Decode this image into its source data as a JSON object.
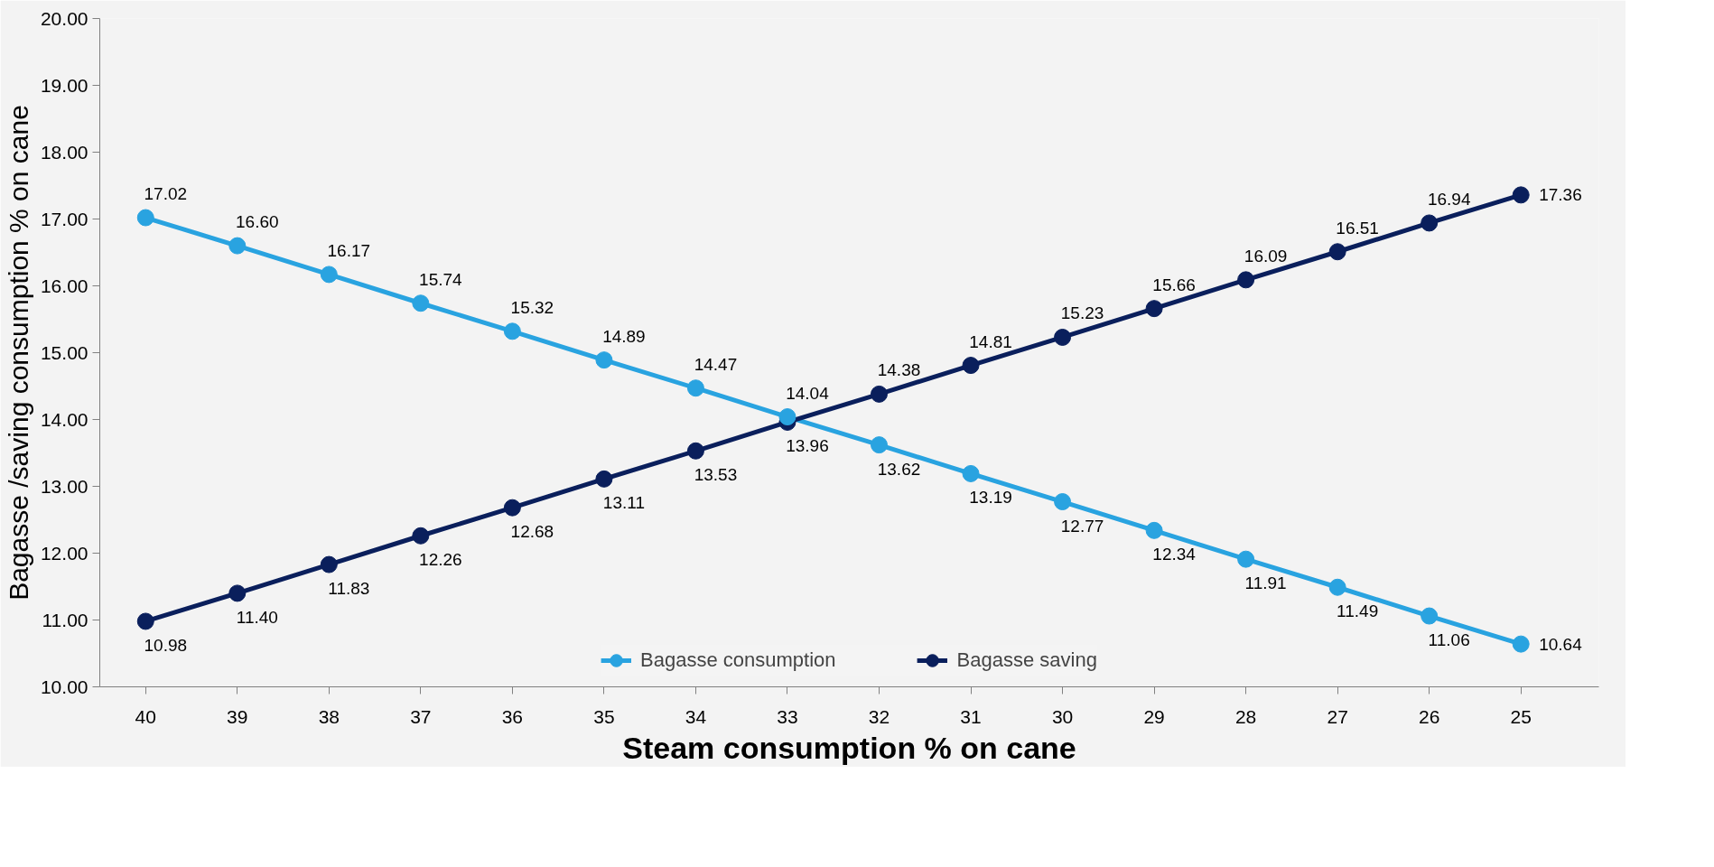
{
  "chart_data": {
    "type": "line",
    "xlabel": "Steam consumption % on cane",
    "ylabel": "Bagasse /saving consumption % on cane",
    "categories": [
      "40",
      "39",
      "38",
      "37",
      "36",
      "35",
      "34",
      "33",
      "32",
      "31",
      "30",
      "29",
      "28",
      "27",
      "26",
      "25"
    ],
    "series": [
      {
        "name": "Bagasse consumption",
        "color": "#29a3e0",
        "values": [
          17.02,
          16.6,
          16.17,
          15.74,
          15.32,
          14.89,
          14.47,
          14.04,
          13.62,
          13.19,
          12.77,
          12.34,
          11.91,
          11.49,
          11.06,
          10.64
        ],
        "value_labels": [
          "17.02",
          "16.60",
          "16.17",
          "15.74",
          "15.32",
          "14.89",
          "14.47",
          "14.04",
          "13.62",
          "13.19",
          "12.77",
          "12.34",
          "11.91",
          "11.49",
          "11.06",
          "10.64"
        ]
      },
      {
        "name": "Bagasse saving",
        "color": "#0a1f5c",
        "values": [
          10.98,
          11.4,
          11.83,
          12.26,
          12.68,
          13.11,
          13.53,
          13.96,
          14.38,
          14.81,
          15.23,
          15.66,
          16.09,
          16.51,
          16.94,
          17.36
        ],
        "value_labels": [
          "10.98",
          "11.40",
          "11.83",
          "12.26",
          "12.68",
          "13.11",
          "13.53",
          "13.96",
          "14.38",
          "14.81",
          "15.23",
          "15.66",
          "16.09",
          "16.51",
          "16.94",
          "17.36"
        ]
      }
    ],
    "ylim": [
      10,
      20
    ],
    "yticks": [
      {
        "value": 10,
        "label": "10.00"
      },
      {
        "value": 11,
        "label": "11.00"
      },
      {
        "value": 12,
        "label": "12.00"
      },
      {
        "value": 13,
        "label": "13.00"
      },
      {
        "value": 14,
        "label": "14.00"
      },
      {
        "value": 15,
        "label": "15.00"
      },
      {
        "value": 16,
        "label": "16.00"
      },
      {
        "value": 17,
        "label": "17.00"
      },
      {
        "value": 18,
        "label": "18.00"
      },
      {
        "value": 19,
        "label": "19.00"
      },
      {
        "value": 20,
        "label": "20.00"
      }
    ],
    "marker": "circle",
    "line_style": "solid",
    "grid": false,
    "legend": "bottom"
  }
}
